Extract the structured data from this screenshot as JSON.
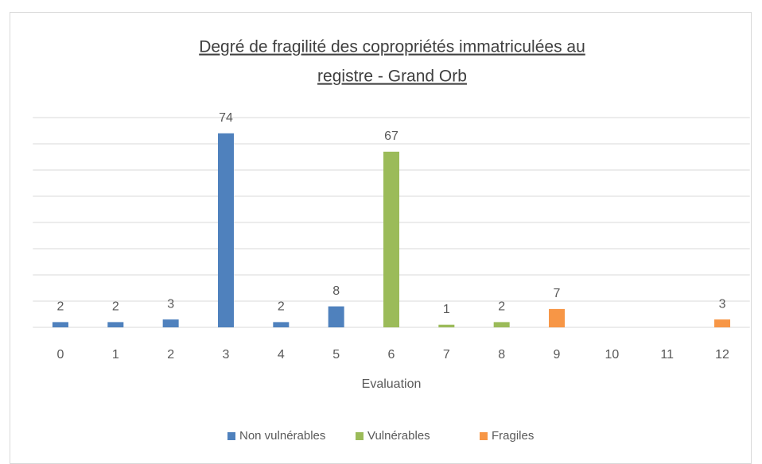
{
  "chart_data": {
    "type": "bar",
    "title": [
      "Degré de fragilité des copropriétés immatriculées au",
      "registre - Grand Orb"
    ],
    "x_label": "Evaluation",
    "categories": [
      "0",
      "1",
      "2",
      "3",
      "4",
      "5",
      "6",
      "7",
      "8",
      "9",
      "10",
      "11",
      "12"
    ],
    "series": [
      {
        "name": "Non vulnérables",
        "color": "#4f81bd",
        "values": [
          2,
          2,
          3,
          74,
          2,
          8,
          null,
          null,
          null,
          null,
          null,
          null,
          null
        ]
      },
      {
        "name": "Vulnérables",
        "color": "#9bbb59",
        "values": [
          null,
          null,
          null,
          null,
          null,
          null,
          67,
          1,
          2,
          null,
          null,
          null,
          null
        ]
      },
      {
        "name": "Fragiles",
        "color": "#f79646",
        "values": [
          null,
          null,
          null,
          null,
          null,
          null,
          null,
          null,
          null,
          7,
          null,
          null,
          3
        ]
      }
    ],
    "ylim": [
      0,
      80
    ],
    "yticks": [
      0,
      10,
      20,
      30,
      40,
      50,
      60,
      70,
      80
    ],
    "grid": true,
    "legend": "bottom"
  }
}
